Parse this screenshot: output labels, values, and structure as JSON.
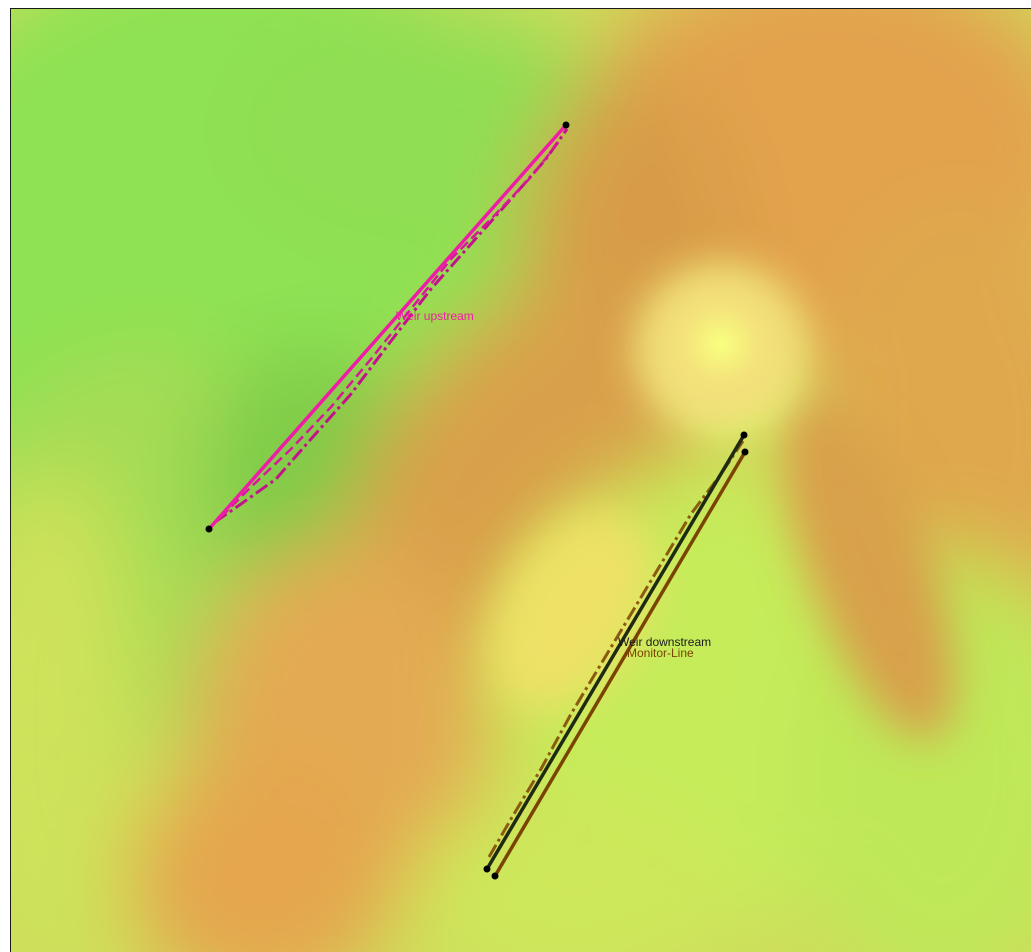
{
  "map": {
    "background": "terrain-elevation-raster",
    "colors": {
      "low_green": "#8fe055",
      "mid_yellow": "#e2ec5c",
      "high_orange": "#e2a24c",
      "peak_yellow": "#f6f47a"
    }
  },
  "features": {
    "weir_upstream": {
      "label": "Weir upstream",
      "color": "#ee1ca6",
      "shadow_color": "#c2138a"
    },
    "weir_downstream": {
      "label": "Weir downstream",
      "color": "#1f2a12",
      "shadow_color": "#8a5a10"
    },
    "monitor_line": {
      "label": "Monitor-Line",
      "color": "#7a4400"
    },
    "vertex_color": "#000000"
  }
}
